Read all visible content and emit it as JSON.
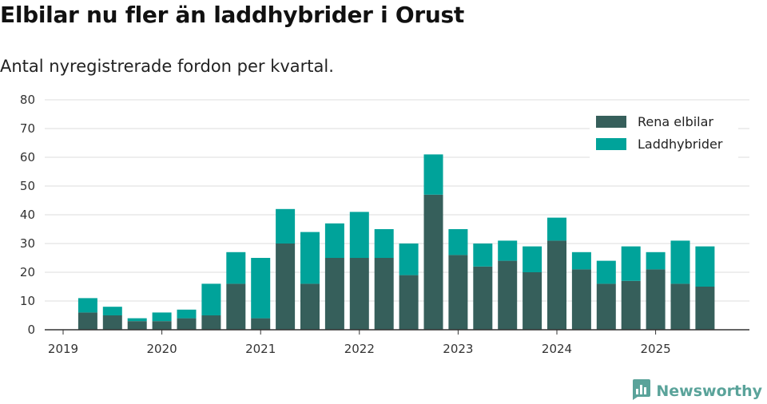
{
  "title": "Elbilar nu fler än laddhybrider i Orust",
  "subtitle": "Antal nyregistrerade fordon per kvartal.",
  "brand": {
    "name": "Newsworthy",
    "icon": "bar-chart-logo-icon"
  },
  "colors": {
    "elbilar": "#365f5b",
    "laddhybrider": "#00a39a",
    "grid": "#dddddd",
    "axis": "#333333",
    "brand": "#5aa39a"
  },
  "chart_data": {
    "type": "bar",
    "stacked": true,
    "title": "Elbilar nu fler än laddhybrider i Orust",
    "subtitle": "Antal nyregistrerade fordon per kvartal.",
    "xlabel": "",
    "ylabel": "",
    "ylim": [
      0,
      80
    ],
    "yticks": [
      0,
      10,
      20,
      30,
      40,
      50,
      60,
      70,
      80
    ],
    "xtick_labels": [
      "2019",
      "2020",
      "2021",
      "2022",
      "2023",
      "2024",
      "2025"
    ],
    "grid": true,
    "legend_position": "top-right",
    "categories": [
      "2019 Q2",
      "2019 Q3",
      "2019 Q4",
      "2020 Q1",
      "2020 Q2",
      "2020 Q3",
      "2020 Q4",
      "2021 Q1",
      "2021 Q2",
      "2021 Q3",
      "2021 Q4",
      "2022 Q1",
      "2022 Q2",
      "2022 Q3",
      "2022 Q4",
      "2023 Q1",
      "2023 Q2",
      "2023 Q3",
      "2023 Q4",
      "2024 Q1",
      "2024 Q2",
      "2024 Q3",
      "2024 Q4",
      "2025 Q1",
      "2025 Q2",
      "2025 Q3"
    ],
    "series": [
      {
        "name": "Rena elbilar",
        "values": [
          6,
          5,
          3,
          3,
          4,
          5,
          16,
          4,
          30,
          16,
          25,
          25,
          25,
          19,
          47,
          26,
          22,
          24,
          20,
          31,
          21,
          16,
          17,
          21,
          16,
          15
        ]
      },
      {
        "name": "Laddhybrider",
        "values": [
          5,
          3,
          1,
          3,
          3,
          11,
          11,
          21,
          12,
          18,
          12,
          16,
          10,
          11,
          14,
          9,
          8,
          7,
          9,
          8,
          6,
          8,
          12,
          6,
          15,
          14
        ]
      }
    ]
  }
}
